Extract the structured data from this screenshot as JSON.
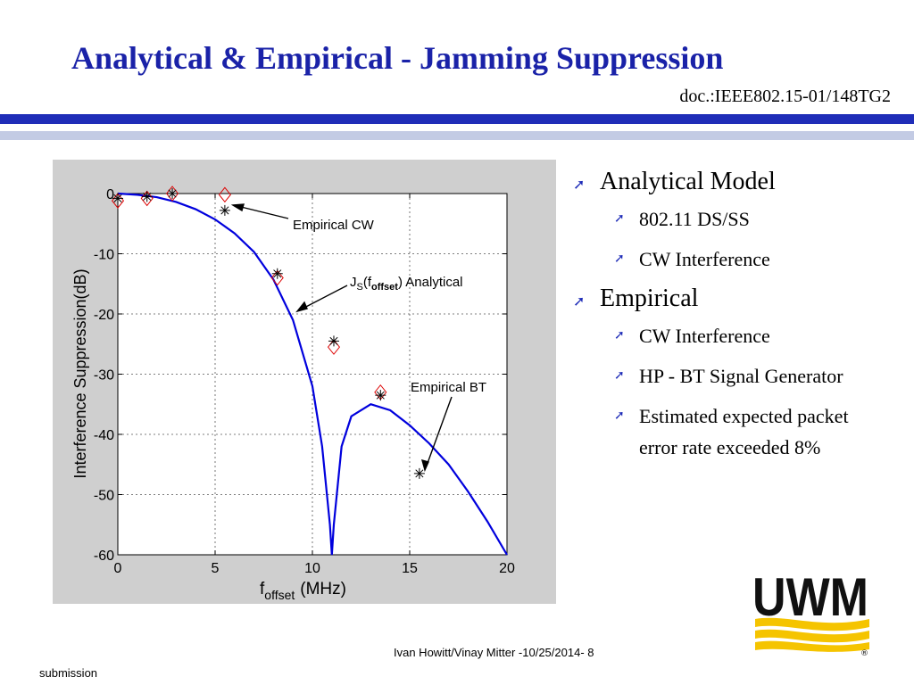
{
  "slide": {
    "title": "Analytical  & Empirical - Jamming Suppression",
    "doc_id": "doc.:IEEE802.15-01/148TG2",
    "footer": "Ivan Howitt/Vinay Mitter -10/25/2014- 8",
    "submission": "submission",
    "logo_text": "UWM",
    "logo_mark": "®"
  },
  "bullets": [
    {
      "text": "Analytical Model",
      "children": [
        "802.11 DS/SS",
        "CW Interference"
      ]
    },
    {
      "text": "Empirical",
      "children": [
        "CW Interference",
        "HP - BT Signal Generator",
        "Estimated expected packet error rate exceeded 8%"
      ]
    }
  ],
  "chart_data": {
    "type": "line",
    "xlabel": "f",
    "xlabel_sub": "offset",
    "xlabel_unit": "(MHz)",
    "ylabel": "Interference Suppression(dB)",
    "xlim": [
      0,
      20
    ],
    "ylim": [
      -60,
      0
    ],
    "xticks": [
      "0",
      "5",
      "10",
      "15",
      "20"
    ],
    "yticks": [
      "0",
      "-10",
      "-20",
      "-30",
      "-40",
      "-50",
      "-60"
    ],
    "grid": true,
    "colors": {
      "analytical": "#0000dd",
      "empirical_cw": "#dd0000",
      "empirical_bt": "#000000"
    },
    "series": [
      {
        "name": "Analytical",
        "x": [
          0,
          1,
          2,
          3,
          4,
          5,
          6,
          7,
          8,
          9,
          10,
          10.5,
          10.9,
          11.0,
          11.1,
          11.5,
          12,
          13,
          14,
          15,
          16,
          17,
          18,
          19,
          20
        ],
        "y": [
          0,
          -0.2,
          -0.6,
          -1.4,
          -2.6,
          -4.3,
          -6.6,
          -9.7,
          -14.3,
          -21.0,
          -32.0,
          -42.0,
          -55.0,
          -60.0,
          -55.0,
          -42.0,
          -37.0,
          -35.0,
          -36.0,
          -38.5,
          -41.5,
          -45.0,
          -49.5,
          -54.5,
          -60.0
        ]
      },
      {
        "name": "Empirical CW",
        "x": [
          0,
          1.5,
          2.8,
          5.5,
          8.2,
          11.1,
          13.5
        ],
        "y": [
          -1.2,
          -0.8,
          0,
          -0.2,
          -14,
          -25.5,
          -33
        ]
      },
      {
        "name": "Empirical BT",
        "x": [
          0,
          1.5,
          2.8,
          5.5,
          8.2,
          11.1,
          13.5,
          15.5
        ],
        "y": [
          -0.8,
          -0.5,
          0,
          -2.8,
          -13.3,
          -24.5,
          -33.5,
          -46.5
        ]
      }
    ],
    "annotations": [
      {
        "text": "Empirical CW"
      },
      {
        "text_main": "J",
        "text_sub": "S",
        "text_paren": "(f",
        "text_sub2": "offset",
        "text_tail": ") Analytical"
      },
      {
        "text": "Empirical BT"
      }
    ]
  }
}
